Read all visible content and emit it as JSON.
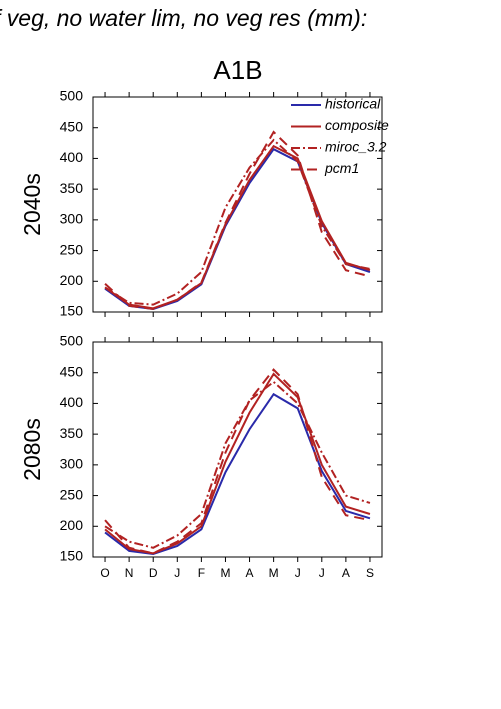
{
  "chart_data": [
    {
      "type": "line",
      "title": "f veg, no water lim, no veg res (mm):",
      "subtitle": "A1B",
      "ylabel": "2040s",
      "categories": [
        null,
        null,
        null,
        null,
        null,
        null,
        null,
        null,
        null,
        null,
        null,
        null
      ],
      "ylim": [
        150,
        500
      ],
      "yticks": [
        150,
        200,
        250,
        300,
        350,
        400,
        450,
        500
      ],
      "legend": "upper right",
      "series": [
        {
          "name": "historical",
          "color": "#2a2aaa",
          "dash": "none",
          "values": [
            188,
            160,
            155,
            168,
            195,
            290,
            360,
            415,
            395,
            295,
            228,
            215
          ]
        },
        {
          "name": "composite",
          "color": "#b22222",
          "dash": "none",
          "values": [
            190,
            162,
            156,
            170,
            197,
            293,
            365,
            420,
            400,
            298,
            230,
            218
          ]
        },
        {
          "name": "miroc_3.2",
          "color": "#b22222",
          "dash": "9,3,2,3",
          "values": [
            190,
            165,
            162,
            180,
            215,
            320,
            385,
            430,
            395,
            290,
            228,
            220
          ]
        },
        {
          "name": "pcm1",
          "color": "#b22222",
          "dash": "10,6",
          "values": [
            196,
            160,
            155,
            170,
            198,
            295,
            375,
            443,
            405,
            280,
            218,
            208
          ]
        }
      ]
    },
    {
      "type": "line",
      "ylabel": "2080s",
      "categories": [
        "O",
        "N",
        "D",
        "J",
        "F",
        "M",
        "A",
        "M",
        "J",
        "J",
        "A",
        "S"
      ],
      "ylim": [
        150,
        500
      ],
      "yticks": [
        150,
        200,
        250,
        300,
        350,
        400,
        450,
        500
      ],
      "series": [
        {
          "color": "#2a2aaa",
          "dash": "none",
          "values": [
            190,
            160,
            155,
            168,
            195,
            288,
            358,
            415,
            392,
            290,
            225,
            213
          ]
        },
        {
          "color": "#b22222",
          "dash": "none",
          "values": [
            195,
            163,
            156,
            172,
            200,
            305,
            385,
            448,
            410,
            300,
            232,
            220
          ]
        },
        {
          "color": "#b22222",
          "dash": "9,3,2,3",
          "values": [
            200,
            175,
            165,
            185,
            220,
            335,
            405,
            435,
            400,
            320,
            250,
            238
          ]
        },
        {
          "color": "#b22222",
          "dash": "10,6",
          "values": [
            210,
            165,
            156,
            175,
            205,
            320,
            405,
            455,
            415,
            280,
            218,
            210
          ]
        }
      ]
    }
  ]
}
